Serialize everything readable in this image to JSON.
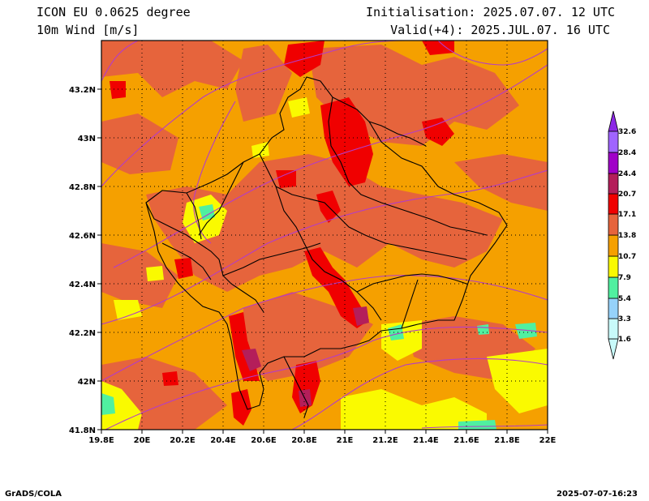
{
  "header": {
    "model": "ICON EU 0.0625 degree",
    "variable": "10m Wind [m/s]",
    "init": "Initialisation: 2025.07.07. 12 UTC",
    "valid": "Valid(+4): 2025.JUL.07. 16 UTC"
  },
  "footer": {
    "credit": "GrADS/COLA",
    "timestamp": "2025-07-07-16:23"
  },
  "axes": {
    "lon_labels": [
      "19.8E",
      "20E",
      "20.2E",
      "20.4E",
      "20.6E",
      "20.8E",
      "21E",
      "21.2E",
      "21.4E",
      "21.6E",
      "21.8E",
      "22E"
    ],
    "lat_labels": [
      "41.8N",
      "42N",
      "42.2N",
      "42.4N",
      "42.6N",
      "42.8N",
      "43N",
      "43.2N"
    ],
    "lon_range": [
      19.8,
      22.0
    ],
    "lat_range": [
      41.8,
      43.4
    ]
  },
  "colorbar": {
    "levels": [
      "1.6",
      "3.3",
      "5.4",
      "7.9",
      "10.7",
      "13.8",
      "17.1",
      "20.7",
      "24.4",
      "28.4",
      "32.6"
    ],
    "colors": [
      "#c8fafa",
      "#96d2fa",
      "#50f0a0",
      "#fafa00",
      "#f5a000",
      "#e6643c",
      "#f00000",
      "#b41e5a",
      "#a000c8",
      "#a064ff",
      "#8c28e6"
    ]
  }
}
